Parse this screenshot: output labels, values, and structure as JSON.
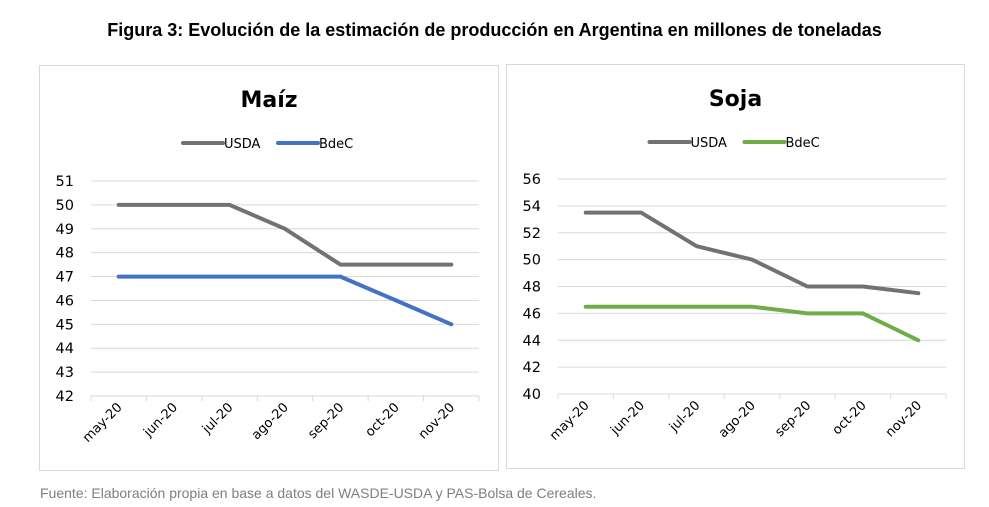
{
  "figure": {
    "title": "Figura 3: Evolución de la estimación de producción en Argentina en millones de toneladas",
    "source": "Fuente: Elaboración propia en base a datos del WASDE-USDA y PAS-Bolsa de Cereales."
  },
  "chart_data": [
    {
      "type": "line",
      "title": "Maíz",
      "xlabel": "",
      "ylabel": "",
      "categories": [
        "may-20",
        "jun-20",
        "jul-20",
        "ago-20",
        "sep-20",
        "oct-20",
        "nov-20"
      ],
      "series": [
        {
          "name": "USDA",
          "color": "#767171",
          "values": [
            50,
            50,
            50,
            49,
            47.5,
            47.5,
            47.5
          ]
        },
        {
          "name": "BdeC",
          "color": "#4472c4",
          "values": [
            47,
            47,
            47,
            47,
            47,
            46,
            45
          ]
        }
      ],
      "ylim": [
        42,
        51
      ],
      "yticks": [
        42,
        43,
        44,
        45,
        46,
        47,
        48,
        49,
        50,
        51
      ],
      "grid": true,
      "legend": "top-center"
    },
    {
      "type": "line",
      "title": "Soja",
      "xlabel": "",
      "ylabel": "",
      "categories": [
        "may-20",
        "jun-20",
        "jul-20",
        "ago-20",
        "sep-20",
        "oct-20",
        "nov-20"
      ],
      "series": [
        {
          "name": "USDA",
          "color": "#767171",
          "values": [
            53.5,
            53.5,
            51,
            50,
            48,
            48,
            47.5
          ]
        },
        {
          "name": "BdeC",
          "color": "#70ad47",
          "values": [
            46.5,
            46.5,
            46.5,
            46.5,
            46,
            46,
            44
          ]
        }
      ],
      "ylim": [
        40,
        56
      ],
      "yticks": [
        40,
        42,
        44,
        46,
        48,
        50,
        52,
        54,
        56
      ],
      "grid": true,
      "legend": "top-center"
    }
  ]
}
